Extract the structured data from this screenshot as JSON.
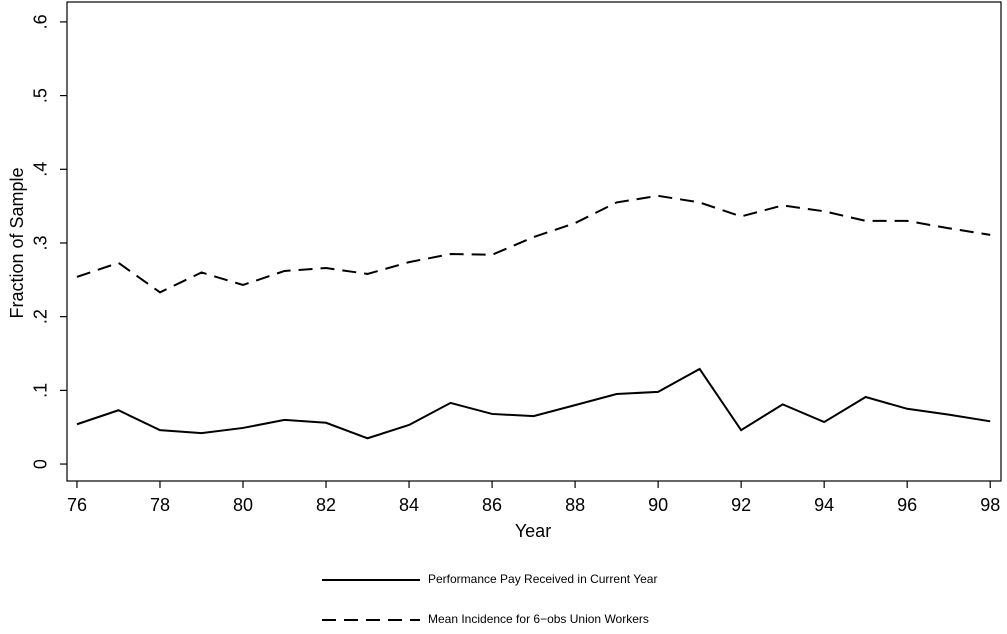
{
  "chart_data": {
    "type": "line",
    "x_label": "Year",
    "y_label": "Fraction of Sample",
    "x": [
      76,
      77,
      78,
      79,
      80,
      81,
      82,
      83,
      84,
      85,
      86,
      87,
      88,
      89,
      90,
      91,
      92,
      93,
      94,
      95,
      96,
      97,
      98
    ],
    "series": [
      {
        "name": "Performance Pay Received in Current Year",
        "color": "#000000",
        "dash": "solid",
        "values": [
          0.054,
          0.073,
          0.046,
          0.042,
          0.049,
          0.06,
          0.056,
          0.035,
          0.053,
          0.083,
          0.068,
          0.065,
          0.08,
          0.095,
          0.098,
          0.129,
          0.046,
          0.081,
          0.057,
          0.091,
          0.075,
          0.067,
          0.058
        ]
      },
      {
        "name": "Mean Incidence for 6−obs Union Workers",
        "color": "#000000",
        "dash": "dashed",
        "values": [
          0.254,
          0.273,
          0.233,
          0.26,
          0.243,
          0.262,
          0.266,
          0.258,
          0.274,
          0.285,
          0.284,
          0.308,
          0.327,
          0.355,
          0.364,
          0.355,
          0.336,
          0.351,
          0.343,
          0.33,
          0.33,
          0.32,
          0.311
        ]
      }
    ],
    "xlim": [
      75.76,
      98.26
    ],
    "ylim": [
      -0.023,
      0.627
    ],
    "xticks": [
      76,
      78,
      80,
      82,
      84,
      86,
      88,
      90,
      92,
      94,
      96,
      98
    ],
    "yticks": [
      0,
      {
        "value": 0.1,
        "label": ".1"
      },
      {
        "value": 0.2,
        "label": ".2"
      },
      {
        "value": 0.3,
        "label": ".3"
      },
      {
        "value": 0.4,
        "label": ".4"
      },
      {
        "value": 0.5,
        "label": ".5"
      },
      {
        "value": 0.6,
        "label": ".6"
      }
    ],
    "grid": false,
    "legend": "bottom"
  }
}
